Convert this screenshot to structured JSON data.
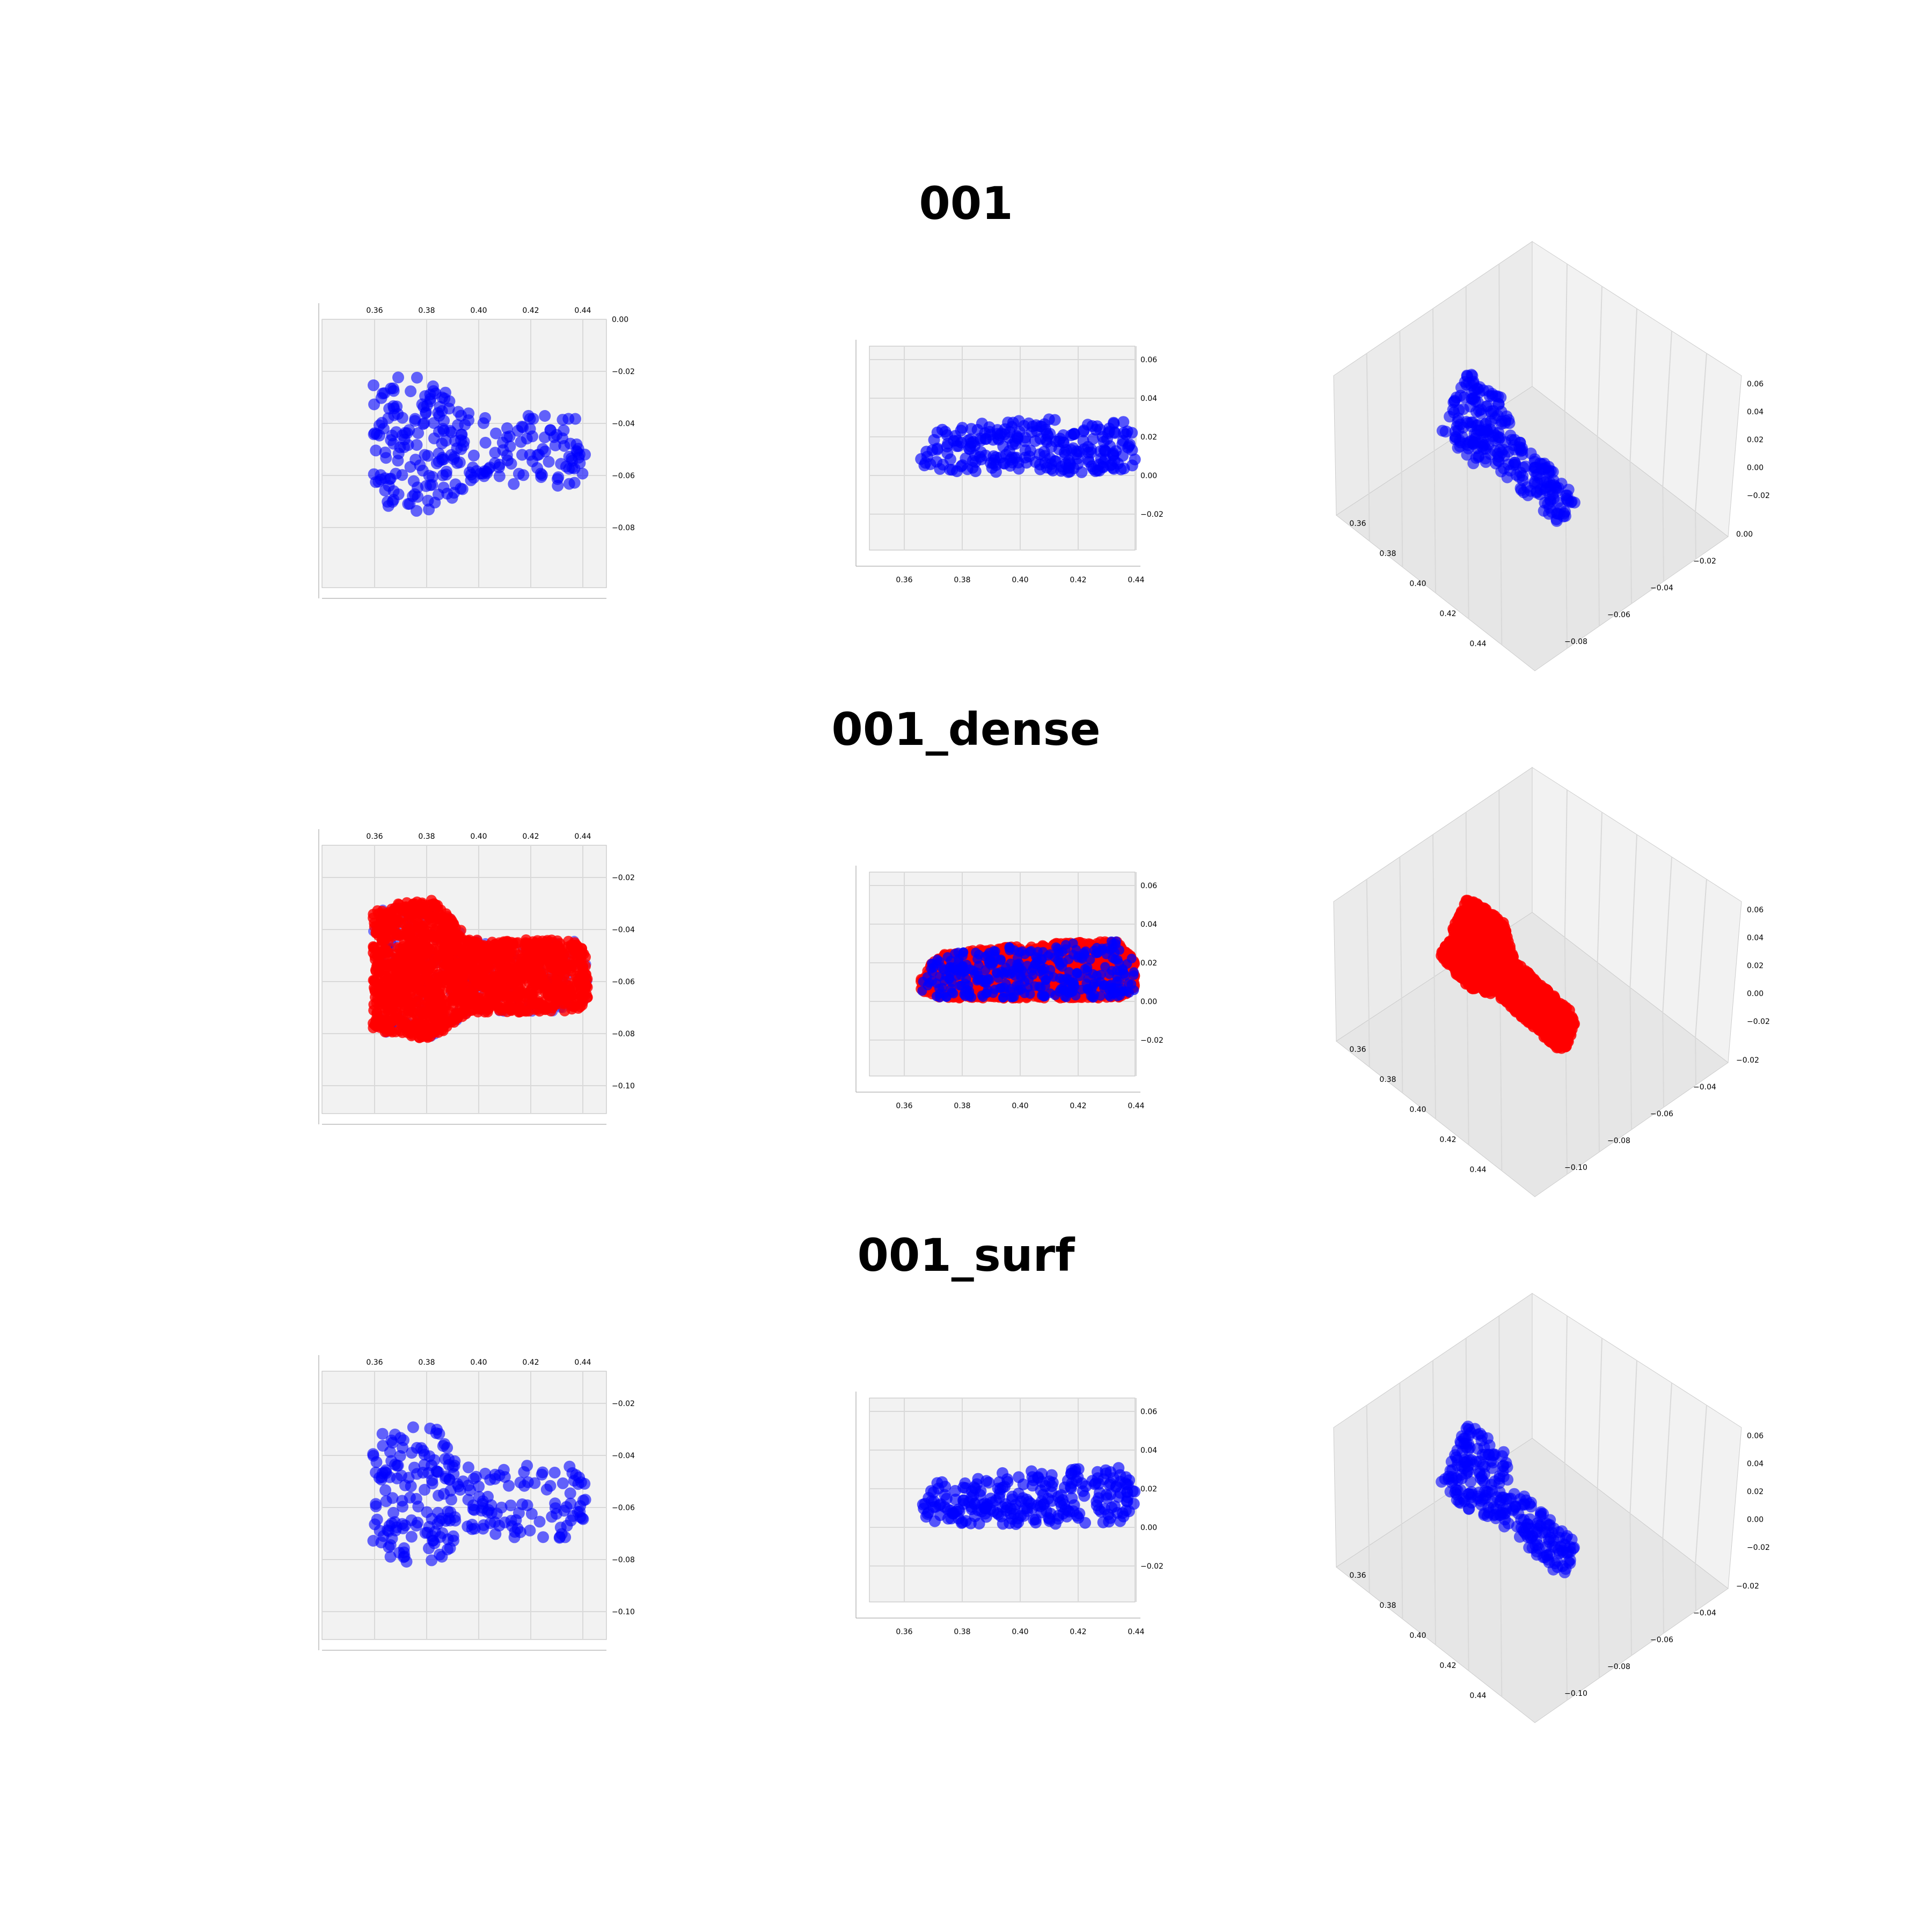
{
  "figure": {
    "rows": [
      {
        "title": "001",
        "cloud": "sparse"
      },
      {
        "title": "001_dense",
        "cloud": "dense"
      },
      {
        "title": "001_surf",
        "cloud": "surf"
      }
    ]
  },
  "chart_data": {
    "type": "scatter",
    "colors": {
      "points": "#0000ff",
      "dense_points": "#ff0000",
      "pane": "#f2f2f2",
      "grid": "#d9d9d9"
    },
    "views": [
      "top",
      "front",
      "perspective"
    ],
    "rows": [
      {
        "title": "001",
        "series": [
          {
            "color": "#0000ff",
            "count": 250
          }
        ],
        "top": {
          "xticks": [
            "0.36",
            "0.38",
            "0.40",
            "0.42",
            "0.44"
          ],
          "yticks": [
            "0.00",
            "−0.02",
            "−0.04",
            "−0.06",
            "−0.08"
          ],
          "xlim": [
            0.35,
            0.445
          ],
          "ylim": [
            -0.1,
            0.0
          ]
        },
        "front": {
          "xticks": [
            "0.36",
            "0.38",
            "0.40",
            "0.42",
            "0.44"
          ],
          "zticks": [
            "0.06",
            "0.04",
            "0.02",
            "0.00",
            "−0.02"
          ],
          "xlim": [
            0.35,
            0.445
          ],
          "zlim": [
            -0.03,
            0.065
          ]
        },
        "persp": {
          "xticks": [
            "0.36",
            "0.38",
            "0.40",
            "0.42",
            "0.44"
          ],
          "yticks": [
            "0.00",
            "−0.02",
            "−0.04",
            "−0.06",
            "−0.08"
          ],
          "zticks": [
            "0.06",
            "0.04",
            "0.02",
            "0.00",
            "−0.02"
          ]
        }
      },
      {
        "title": "001_dense",
        "series": [
          {
            "color": "#ff0000",
            "count": 1500
          },
          {
            "color": "#0000ff",
            "count": 250
          }
        ],
        "top": {
          "xticks": [
            "0.36",
            "0.38",
            "0.40",
            "0.42",
            "0.44"
          ],
          "yticks": [
            "−0.02",
            "−0.04",
            "−0.06",
            "−0.08",
            "−0.10"
          ],
          "xlim": [
            0.35,
            0.445
          ],
          "ylim": [
            -0.1,
            0.0
          ]
        },
        "front": {
          "xticks": [
            "0.36",
            "0.38",
            "0.40",
            "0.42",
            "0.44"
          ],
          "zticks": [
            "0.06",
            "0.04",
            "0.02",
            "0.00",
            "−0.02"
          ],
          "xlim": [
            0.35,
            0.445
          ],
          "zlim": [
            -0.03,
            0.065
          ]
        },
        "persp": {
          "xticks": [
            "0.36",
            "0.38",
            "0.40",
            "0.42",
            "0.44"
          ],
          "yticks": [
            "−0.02",
            "−0.04",
            "−0.06",
            "−0.08",
            "−0.10"
          ],
          "zticks": [
            "0.06",
            "0.04",
            "0.02",
            "0.00",
            "−0.02"
          ]
        }
      },
      {
        "title": "001_surf",
        "series": [
          {
            "color": "#0000ff",
            "count": 250
          }
        ],
        "top": {
          "xticks": [
            "0.36",
            "0.38",
            "0.40",
            "0.42",
            "0.44"
          ],
          "yticks": [
            "−0.02",
            "−0.04",
            "−0.06",
            "−0.08",
            "−0.10"
          ],
          "xlim": [
            0.35,
            0.445
          ],
          "ylim": [
            -0.1,
            0.0
          ]
        },
        "front": {
          "xticks": [
            "0.36",
            "0.38",
            "0.40",
            "0.42",
            "0.44"
          ],
          "zticks": [
            "0.06",
            "0.04",
            "0.02",
            "0.00",
            "−0.02"
          ],
          "xlim": [
            0.35,
            0.445
          ],
          "zlim": [
            -0.03,
            0.065
          ]
        },
        "persp": {
          "xticks": [
            "0.36",
            "0.38",
            "0.40",
            "0.42",
            "0.44"
          ],
          "yticks": [
            "−0.02",
            "−0.04",
            "−0.06",
            "−0.08",
            "−0.10"
          ],
          "zticks": [
            "0.06",
            "0.04",
            "0.02",
            "0.00",
            "−0.02"
          ]
        }
      }
    ]
  }
}
